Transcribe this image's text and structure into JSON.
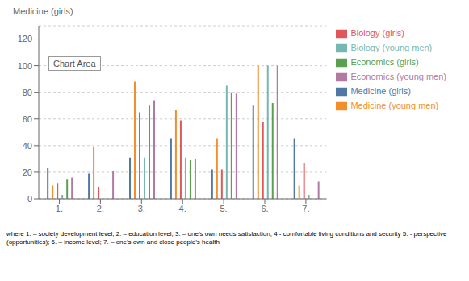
{
  "chart_data": {
    "type": "bar",
    "ylabel": "Medicine (girls)",
    "categories": [
      "1.",
      "2.",
      "3.",
      "4.",
      "5.",
      "6.",
      "7."
    ],
    "series": [
      {
        "name": "Medicine (girls)",
        "color": "#4e79a7",
        "values": [
          23,
          19,
          31,
          45,
          22,
          70,
          45
        ]
      },
      {
        "name": "Medicine (young men)",
        "color": "#f28e2b",
        "values": [
          10,
          39,
          88,
          67,
          45,
          100,
          10
        ]
      },
      {
        "name": "Biology (girls)",
        "color": "#e15759",
        "values": [
          12,
          9,
          65,
          59,
          22,
          58,
          27
        ]
      },
      {
        "name": "Biology (young men)",
        "color": "#76b7b2",
        "values": [
          3,
          0,
          31,
          31,
          85,
          100,
          3
        ]
      },
      {
        "name": "Economics (girls)",
        "color": "#59a14f",
        "values": [
          15,
          0,
          70,
          29,
          80,
          72,
          0
        ]
      },
      {
        "name": "Economics (young men)",
        "color": "#b07aa1",
        "values": [
          16,
          21,
          74,
          30,
          79,
          100,
          13
        ]
      }
    ],
    "ylim": [
      0,
      130
    ],
    "yticks": [
      0,
      20,
      40,
      60,
      80,
      100,
      120
    ],
    "grid": true,
    "legend": "right",
    "annotations": [
      "Chart Area",
      "where 1. – society development level; 2. – education level; 3. – one’s own needs satisfaction; 4 - comfortable living conditions and security 5. - perspective\n(opportunities); 6. – income level; 7. – one’s own and close people’s health"
    ]
  }
}
